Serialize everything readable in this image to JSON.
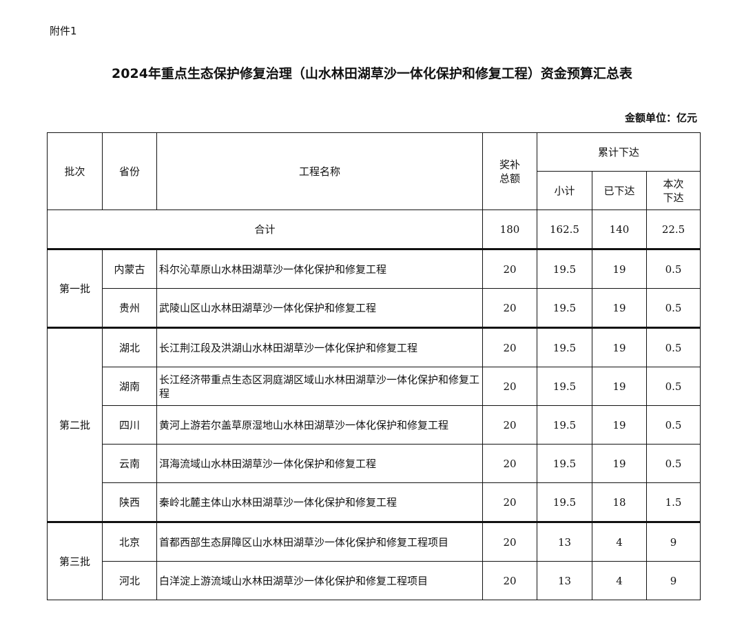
{
  "attachment_label": "附件1",
  "title": "2024年重点生态保护修复治理（山水林田湖草沙一体化保护和修复工程）资金预算汇总表",
  "unit": "金额单位：亿元",
  "headers": {
    "batch": "批次",
    "province": "省份",
    "project": "工程名称",
    "total": "奖补总额",
    "cumulative": "累计下达",
    "subtotal": "小计",
    "issued": "已下达",
    "current": "本次下达"
  },
  "total_row": {
    "label": "合计",
    "total": "180",
    "subtotal": "162.5",
    "issued": "140",
    "current": "22.5"
  },
  "batches": [
    "第一批",
    "第二批",
    "第三批"
  ],
  "rows": [
    {
      "province": "内蒙古",
      "project": "科尔沁草原山水林田湖草沙一体化保护和修复工程",
      "total": "20",
      "subtotal": "19.5",
      "issued": "19",
      "current": "0.5"
    },
    {
      "province": "贵州",
      "project": "武陵山区山水林田湖草沙一体化保护和修复工程",
      "total": "20",
      "subtotal": "19.5",
      "issued": "19",
      "current": "0.5"
    },
    {
      "province": "湖北",
      "project": "长江荆江段及洪湖山水林田湖草沙一体化保护和修复工程",
      "total": "20",
      "subtotal": "19.5",
      "issued": "19",
      "current": "0.5"
    },
    {
      "province": "湖南",
      "project": "长江经济带重点生态区洞庭湖区域山水林田湖草沙一体化保护和修复工程",
      "total": "20",
      "subtotal": "19.5",
      "issued": "19",
      "current": "0.5"
    },
    {
      "province": "四川",
      "project": "黄河上游若尔盖草原湿地山水林田湖草沙一体化保护和修复工程",
      "total": "20",
      "subtotal": "19.5",
      "issued": "19",
      "current": "0.5"
    },
    {
      "province": "云南",
      "project": "洱海流域山水林田湖草沙一体化保护和修复工程",
      "total": "20",
      "subtotal": "19.5",
      "issued": "19",
      "current": "0.5"
    },
    {
      "province": "陕西",
      "project": "秦岭北麓主体山水林田湖草沙一体化保护和修复工程",
      "total": "20",
      "subtotal": "19.5",
      "issued": "18",
      "current": "1.5"
    },
    {
      "province": "北京",
      "project": "首都西部生态屏障区山水林田湖草沙一体化保护和修复工程项目",
      "total": "20",
      "subtotal": "13",
      "issued": "4",
      "current": "9"
    },
    {
      "province": "河北",
      "project": "白洋淀上游流域山水林田湖草沙一体化保护和修复工程项目",
      "total": "20",
      "subtotal": "13",
      "issued": "4",
      "current": "9"
    }
  ]
}
